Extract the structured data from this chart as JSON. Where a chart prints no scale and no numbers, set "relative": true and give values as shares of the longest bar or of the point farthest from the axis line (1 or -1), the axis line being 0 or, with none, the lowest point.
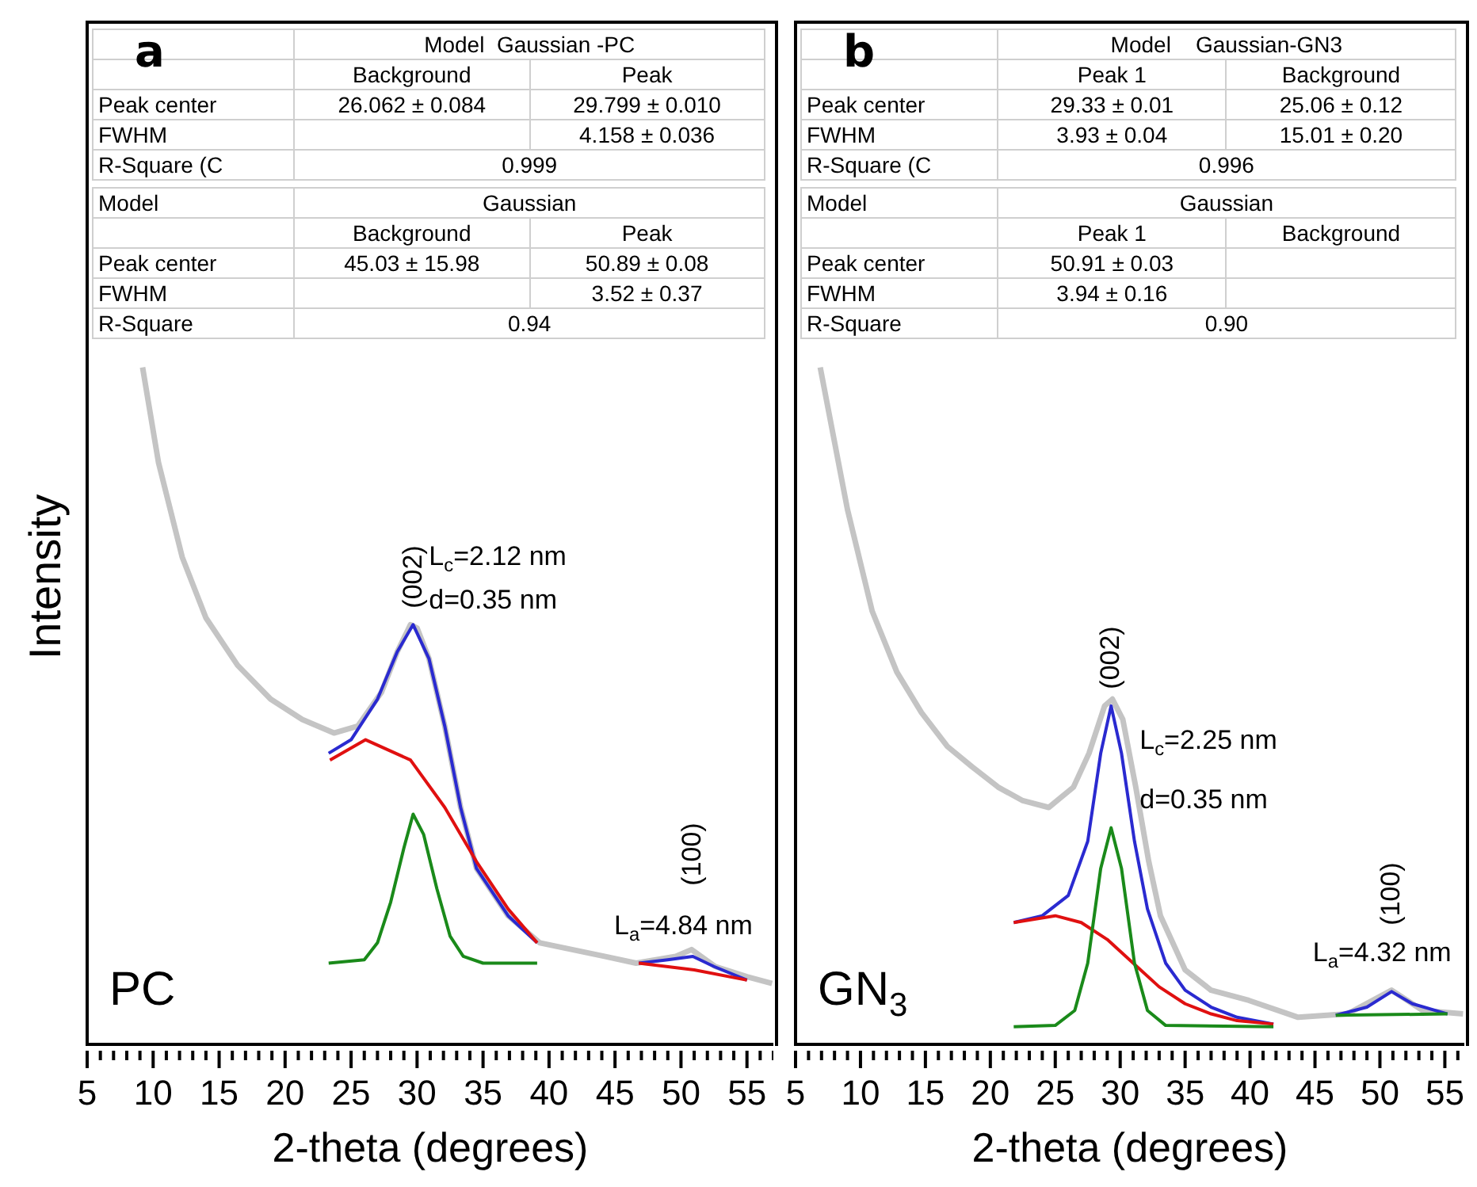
{
  "chart_data": [
    {
      "type": "line",
      "relative": true,
      "ylabel": "Intensity",
      "xlabel": "2-theta (degrees)",
      "marker": "none",
      "xlim": [
        5,
        57
      ],
      "xticks": [
        5,
        {
          "value": 6,
          "label": null
        },
        {
          "value": 7,
          "label": null
        },
        {
          "value": 8,
          "label": null
        },
        {
          "value": 9,
          "label": null
        },
        10,
        {
          "value": 11,
          "label": null
        },
        {
          "value": 12,
          "label": null
        },
        {
          "value": 13,
          "label": null
        },
        {
          "value": 14,
          "label": null
        },
        15,
        {
          "value": 16,
          "label": null
        },
        {
          "value": 17,
          "label": null
        },
        {
          "value": 18,
          "label": null
        },
        {
          "value": 19,
          "label": null
        },
        20,
        {
          "value": 21,
          "label": null
        },
        {
          "value": 22,
          "label": null
        },
        {
          "value": 23,
          "label": null
        },
        {
          "value": 24,
          "label": null
        },
        25,
        {
          "value": 26,
          "label": null
        },
        {
          "value": 27,
          "label": null
        },
        {
          "value": 28,
          "label": null
        },
        {
          "value": 29,
          "label": null
        },
        30,
        {
          "value": 31,
          "label": null
        },
        {
          "value": 32,
          "label": null
        },
        {
          "value": 33,
          "label": null
        },
        {
          "value": 34,
          "label": null
        },
        35,
        {
          "value": 36,
          "label": null
        },
        {
          "value": 37,
          "label": null
        },
        {
          "value": 38,
          "label": null
        },
        {
          "value": 39,
          "label": null
        },
        40,
        {
          "value": 41,
          "label": null
        },
        {
          "value": 42,
          "label": null
        },
        {
          "value": 43,
          "label": null
        },
        {
          "value": 44,
          "label": null
        },
        45,
        {
          "value": 46,
          "label": null
        },
        {
          "value": 47,
          "label": null
        },
        {
          "value": 48,
          "label": null
        },
        {
          "value": 49,
          "label": null
        },
        50,
        {
          "value": 51,
          "label": null
        },
        {
          "value": 52,
          "label": null
        },
        {
          "value": 53,
          "label": null
        },
        {
          "value": 54,
          "label": null
        },
        55,
        {
          "value": 56,
          "label": null
        },
        {
          "value": 57,
          "label": null
        }
      ],
      "series": [
        {
          "color": "#c4c4c4",
          "x": [
            9.2,
            10.4,
            12.2,
            14,
            16.4,
            18.9,
            21.3,
            23.7,
            25.5,
            27.3,
            28.5,
            29.5,
            30,
            30.9,
            32.1,
            33.3,
            34.5,
            36.9,
            39.3,
            44.2,
            46.6,
            49.6,
            50.8,
            52.6,
            55,
            56.9
          ],
          "values": [
            1.0,
            0.86,
            0.72,
            0.63,
            0.56,
            0.51,
            0.48,
            0.46,
            0.47,
            0.52,
            0.58,
            0.62,
            0.615,
            0.57,
            0.47,
            0.35,
            0.26,
            0.19,
            0.15,
            0.13,
            0.12,
            0.13,
            0.14,
            0.115,
            0.1,
            0.09
          ]
        },
        {
          "color": "#2a2ad0",
          "x": [
            23.3,
            25,
            27,
            28.5,
            29.7,
            30.9,
            32.1,
            33.3,
            34.5,
            36.9,
            39.1
          ],
          "values": [
            0.43,
            0.45,
            0.51,
            0.58,
            0.62,
            0.57,
            0.47,
            0.35,
            0.26,
            0.19,
            0.15
          ]
        },
        {
          "color": "#2a2ad0",
          "x": [
            46.8,
            49,
            50.9,
            52.5,
            55
          ],
          "values": [
            0.12,
            0.125,
            0.13,
            0.115,
            0.095
          ]
        },
        {
          "color": "#e01010",
          "x": [
            23.4,
            26.1,
            29.5,
            32.1,
            34.5,
            36.9,
            39.1
          ],
          "values": [
            0.42,
            0.45,
            0.42,
            0.35,
            0.27,
            0.2,
            0.15
          ]
        },
        {
          "color": "#e01010",
          "x": [
            46.8,
            51,
            55
          ],
          "values": [
            0.12,
            0.11,
            0.095
          ]
        },
        {
          "color": "#1a8a1a",
          "x": [
            23.3,
            26,
            27,
            28,
            29,
            29.7,
            30.5,
            31.5,
            32.5,
            33.5,
            35,
            39.1
          ],
          "values": [
            0.12,
            0.125,
            0.15,
            0.21,
            0.29,
            0.34,
            0.31,
            0.23,
            0.16,
            0.13,
            0.12,
            0.12
          ]
        }
      ],
      "annotations": [
        "a",
        "PC",
        "\tModel  Gaussian -PC\n\tBackground\tPeak\nPeak center\t26.062 ± 0.084\t29.799 ± 0.010\nFWHM\t\t4.158 ± 0.036\nR-Square (C\t0.999",
        "Model\tGaussian\n\tBackground\tPeak\nPeak center\t45.03 ± 15.98\t50.89 ± 0.08\nFWHM\t\t3.52 ± 0.37\nR-Square\t0.94",
        "(002)",
        "L$_{c}$=2.12 nm",
        "d=0.35 nm",
        "(100)",
        "L$_{a}$=4.84 nm"
      ]
    },
    {
      "type": "line",
      "relative": true,
      "xlabel": "2-theta (degrees)",
      "marker": "none",
      "xlim": [
        5,
        56.5
      ],
      "xticks": [
        5,
        {
          "value": 6,
          "label": null
        },
        {
          "value": 7,
          "label": null
        },
        {
          "value": 8,
          "label": null
        },
        {
          "value": 9,
          "label": null
        },
        10,
        {
          "value": 11,
          "label": null
        },
        {
          "value": 12,
          "label": null
        },
        {
          "value": 13,
          "label": null
        },
        {
          "value": 14,
          "label": null
        },
        15,
        {
          "value": 16,
          "label": null
        },
        {
          "value": 17,
          "label": null
        },
        {
          "value": 18,
          "label": null
        },
        {
          "value": 19,
          "label": null
        },
        20,
        {
          "value": 21,
          "label": null
        },
        {
          "value": 22,
          "label": null
        },
        {
          "value": 23,
          "label": null
        },
        {
          "value": 24,
          "label": null
        },
        25,
        {
          "value": 26,
          "label": null
        },
        {
          "value": 27,
          "label": null
        },
        {
          "value": 28,
          "label": null
        },
        {
          "value": 29,
          "label": null
        },
        30,
        {
          "value": 31,
          "label": null
        },
        {
          "value": 32,
          "label": null
        },
        {
          "value": 33,
          "label": null
        },
        {
          "value": 34,
          "label": null
        },
        35,
        {
          "value": 36,
          "label": null
        },
        {
          "value": 37,
          "label": null
        },
        {
          "value": 38,
          "label": null
        },
        {
          "value": 39,
          "label": null
        },
        40,
        {
          "value": 41,
          "label": null
        },
        {
          "value": 42,
          "label": null
        },
        {
          "value": 43,
          "label": null
        },
        {
          "value": 44,
          "label": null
        },
        45,
        {
          "value": 46,
          "label": null
        },
        {
          "value": 47,
          "label": null
        },
        {
          "value": 48,
          "label": null
        },
        {
          "value": 49,
          "label": null
        },
        50,
        {
          "value": 51,
          "label": null
        },
        {
          "value": 52,
          "label": null
        },
        {
          "value": 53,
          "label": null
        },
        {
          "value": 54,
          "label": null
        },
        55,
        {
          "value": 56,
          "label": null
        }
      ],
      "series": [
        {
          "color": "#c4c4c4",
          "x": [
            6.9,
            9,
            10.9,
            12.8,
            14.7,
            16.7,
            18.6,
            20.6,
            22.5,
            24.5,
            26.4,
            27.6,
            28.8,
            29.4,
            30.2,
            31.2,
            32.2,
            33.1,
            35,
            37,
            39.9,
            43.7,
            47.5,
            50.9,
            53.3,
            56.4
          ],
          "values": [
            1.0,
            0.79,
            0.64,
            0.55,
            0.49,
            0.44,
            0.41,
            0.38,
            0.36,
            0.35,
            0.38,
            0.43,
            0.5,
            0.51,
            0.48,
            0.38,
            0.27,
            0.19,
            0.11,
            0.08,
            0.065,
            0.04,
            0.045,
            0.08,
            0.05,
            0.045
          ]
        },
        {
          "color": "#2a2ad0",
          "x": [
            21.8,
            24,
            26,
            27.5,
            28.5,
            29.3,
            30.1,
            31.1,
            32.1,
            33.5,
            35,
            37,
            39,
            41.8
          ],
          "values": [
            0.18,
            0.19,
            0.22,
            0.3,
            0.43,
            0.5,
            0.43,
            0.3,
            0.2,
            0.12,
            0.08,
            0.055,
            0.04,
            0.03
          ]
        },
        {
          "color": "#2a2ad0",
          "x": [
            46.6,
            49,
            50.9,
            52.5,
            55.2
          ],
          "values": [
            0.043,
            0.055,
            0.078,
            0.06,
            0.045
          ]
        },
        {
          "color": "#e01010",
          "x": [
            21.8,
            25,
            27,
            29,
            31,
            33,
            35,
            37,
            39,
            41.8
          ],
          "values": [
            0.18,
            0.19,
            0.18,
            0.155,
            0.12,
            0.085,
            0.06,
            0.045,
            0.035,
            0.03
          ]
        },
        {
          "color": "#1a8a1a",
          "x": [
            21.8,
            25,
            26.5,
            27.5,
            28.5,
            29.3,
            30.1,
            31.1,
            32.1,
            33.5,
            41.8
          ],
          "values": [
            0.026,
            0.028,
            0.05,
            0.12,
            0.26,
            0.32,
            0.26,
            0.12,
            0.05,
            0.028,
            0.026
          ]
        },
        {
          "color": "#1a8a1a",
          "x": [
            46.6,
            55.2
          ],
          "values": [
            0.043,
            0.045
          ]
        }
      ],
      "annotations": [
        "b",
        "GN$_{3}$",
        "\tModel    Gaussian-GN3\n\tPeak 1\tBackground\nPeak center\t29.33 ± 0.01\t25.06 ± 0.12\nFWHM\t3.93 ± 0.04\t15.01 ± 0.20\nR-Square (C\t0.996",
        "Model\tGaussian\n\tPeak 1\tBackground\nPeak center\t50.91 ± 0.03\t\nFWHM\t3.94 ± 0.16\t\nR-Square\t0.90",
        "(002)",
        "L$_{c}$=2.25 nm",
        "d=0.35 nm",
        "(100)",
        "L$_{a}$=4.32 nm"
      ]
    }
  ]
}
